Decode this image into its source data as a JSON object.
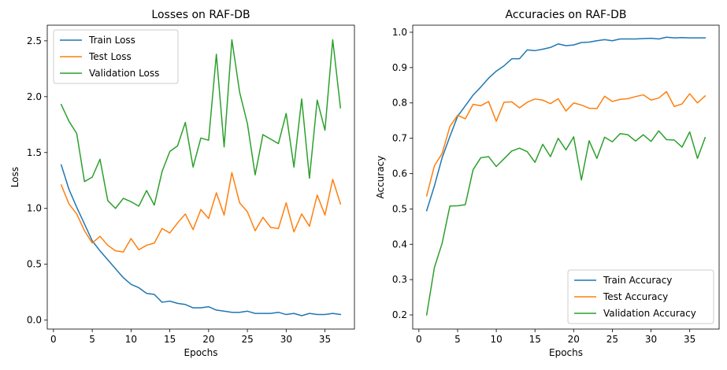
{
  "chart_data": [
    {
      "type": "line",
      "title": "Losses on RAF-DB",
      "xlabel": "Epochs",
      "ylabel": "Loss",
      "xlim": [
        -0.8,
        38.8
      ],
      "ylim": [
        -0.08,
        2.64
      ],
      "xticks": [
        0,
        5,
        10,
        15,
        20,
        25,
        30,
        35
      ],
      "yticks": [
        0.0,
        0.5,
        1.0,
        1.5,
        2.0,
        2.5
      ],
      "ytick_labels": [
        "0.0",
        "0.5",
        "1.0",
        "1.5",
        "2.0",
        "2.5"
      ],
      "grid": false,
      "legend_position": "top-left",
      "x": [
        1,
        2,
        3,
        4,
        5,
        6,
        7,
        8,
        9,
        10,
        11,
        12,
        13,
        14,
        15,
        16,
        17,
        18,
        19,
        20,
        21,
        22,
        23,
        24,
        25,
        26,
        27,
        28,
        29,
        30,
        31,
        32,
        33,
        34,
        35,
        36,
        37
      ],
      "series": [
        {
          "name": "Train Loss",
          "color": "#1f77b4",
          "values": [
            1.39,
            1.17,
            1.01,
            0.86,
            0.71,
            0.62,
            0.54,
            0.46,
            0.38,
            0.32,
            0.29,
            0.24,
            0.23,
            0.16,
            0.17,
            0.15,
            0.14,
            0.11,
            0.11,
            0.12,
            0.09,
            0.08,
            0.07,
            0.07,
            0.08,
            0.06,
            0.06,
            0.06,
            0.07,
            0.05,
            0.06,
            0.04,
            0.06,
            0.05,
            0.05,
            0.06,
            0.05
          ]
        },
        {
          "name": "Test Loss",
          "color": "#ff7f0e",
          "values": [
            1.21,
            1.04,
            0.95,
            0.8,
            0.69,
            0.75,
            0.67,
            0.62,
            0.61,
            0.73,
            0.63,
            0.67,
            0.69,
            0.82,
            0.78,
            0.87,
            0.95,
            0.81,
            0.99,
            0.91,
            1.14,
            0.94,
            1.32,
            1.05,
            0.97,
            0.8,
            0.92,
            0.83,
            0.82,
            1.05,
            0.79,
            0.95,
            0.84,
            1.12,
            0.94,
            1.26,
            1.04
          ]
        },
        {
          "name": "Validation Loss",
          "color": "#2ca02c",
          "values": [
            1.93,
            1.78,
            1.67,
            1.24,
            1.28,
            1.44,
            1.07,
            1.0,
            1.09,
            1.06,
            1.02,
            1.16,
            1.03,
            1.33,
            1.51,
            1.56,
            1.77,
            1.37,
            1.63,
            1.61,
            2.38,
            1.55,
            2.51,
            2.04,
            1.76,
            1.3,
            1.66,
            1.62,
            1.58,
            1.85,
            1.37,
            1.98,
            1.27,
            1.97,
            1.7,
            2.51,
            1.9
          ]
        }
      ]
    },
    {
      "type": "line",
      "title": "Accuracies on RAF-DB",
      "xlabel": "Epochs",
      "ylabel": "Accuracy",
      "xlim": [
        -0.8,
        38.8
      ],
      "ylim": [
        0.16,
        1.02
      ],
      "xticks": [
        0,
        5,
        10,
        15,
        20,
        25,
        30,
        35
      ],
      "yticks": [
        0.2,
        0.3,
        0.4,
        0.5,
        0.6,
        0.7,
        0.8,
        0.9,
        1.0
      ],
      "ytick_labels": [
        "0.2",
        "0.3",
        "0.4",
        "0.5",
        "0.6",
        "0.7",
        "0.8",
        "0.9",
        "1.0"
      ],
      "grid": false,
      "legend_position": "bottom-right",
      "x": [
        1,
        2,
        3,
        4,
        5,
        6,
        7,
        8,
        9,
        10,
        11,
        12,
        13,
        14,
        15,
        16,
        17,
        18,
        19,
        20,
        21,
        22,
        23,
        24,
        25,
        26,
        27,
        28,
        29,
        30,
        31,
        32,
        33,
        34,
        35,
        36,
        37
      ],
      "series": [
        {
          "name": "Train Accuracy",
          "color": "#1f77b4",
          "values": [
            0.495,
            0.565,
            0.645,
            0.705,
            0.762,
            0.792,
            0.822,
            0.845,
            0.87,
            0.89,
            0.905,
            0.925,
            0.925,
            0.95,
            0.948,
            0.952,
            0.957,
            0.967,
            0.962,
            0.964,
            0.971,
            0.972,
            0.976,
            0.979,
            0.976,
            0.981,
            0.981,
            0.981,
            0.982,
            0.983,
            0.981,
            0.986,
            0.984,
            0.985,
            0.984,
            0.984,
            0.984
          ]
        },
        {
          "name": "Test Accuracy",
          "color": "#ff7f0e",
          "values": [
            0.537,
            0.622,
            0.657,
            0.733,
            0.765,
            0.755,
            0.796,
            0.792,
            0.804,
            0.748,
            0.802,
            0.803,
            0.786,
            0.802,
            0.811,
            0.808,
            0.798,
            0.812,
            0.777,
            0.8,
            0.794,
            0.785,
            0.784,
            0.819,
            0.804,
            0.81,
            0.812,
            0.818,
            0.823,
            0.808,
            0.814,
            0.832,
            0.79,
            0.797,
            0.826,
            0.8,
            0.82
          ]
        },
        {
          "name": "Validation Accuracy",
          "color": "#2ca02c",
          "values": [
            0.2,
            0.334,
            0.403,
            0.508,
            0.509,
            0.512,
            0.611,
            0.645,
            0.648,
            0.62,
            0.642,
            0.664,
            0.672,
            0.662,
            0.632,
            0.683,
            0.648,
            0.7,
            0.667,
            0.704,
            0.582,
            0.693,
            0.643,
            0.703,
            0.69,
            0.713,
            0.71,
            0.692,
            0.71,
            0.691,
            0.721,
            0.696,
            0.695,
            0.675,
            0.718,
            0.643,
            0.702
          ]
        }
      ]
    }
  ]
}
